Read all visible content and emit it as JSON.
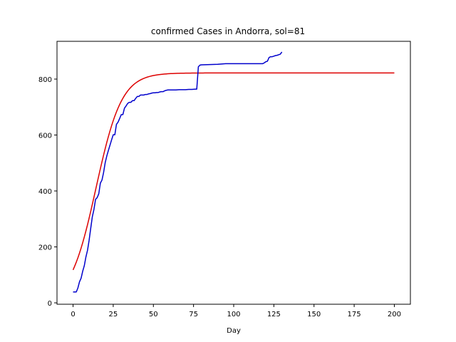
{
  "chart_data": {
    "type": "line",
    "title": "confirmed Cases in Andorra, sol=81",
    "xlabel": "Day",
    "ylabel": "",
    "xlim": [
      -10,
      210
    ],
    "ylim": [
      -5,
      935
    ],
    "xticks": [
      0,
      25,
      50,
      75,
      100,
      125,
      150,
      175,
      200
    ],
    "yticks": [
      0,
      200,
      400,
      600,
      800
    ],
    "grid": false,
    "legend": "none",
    "series": [
      {
        "kind": "fit",
        "color": "#dd0000",
        "model": "logistic",
        "params": {
          "K": 822,
          "r": 0.125,
          "t0": 14.3
        },
        "x_range": [
          0,
          200
        ]
      },
      {
        "kind": "observed",
        "color": "#0000cc",
        "points": [
          [
            0,
            39
          ],
          [
            1,
            39
          ],
          [
            2,
            39
          ],
          [
            3,
            53
          ],
          [
            4,
            75
          ],
          [
            5,
            88
          ],
          [
            6,
            113
          ],
          [
            7,
            133
          ],
          [
            8,
            164
          ],
          [
            9,
            188
          ],
          [
            10,
            224
          ],
          [
            11,
            267
          ],
          [
            12,
            308
          ],
          [
            13,
            334
          ],
          [
            14,
            370
          ],
          [
            15,
            376
          ],
          [
            16,
            390
          ],
          [
            17,
            428
          ],
          [
            18,
            439
          ],
          [
            19,
            466
          ],
          [
            20,
            501
          ],
          [
            21,
            525
          ],
          [
            22,
            545
          ],
          [
            23,
            564
          ],
          [
            24,
            583
          ],
          [
            25,
            601
          ],
          [
            26,
            601
          ],
          [
            27,
            638
          ],
          [
            28,
            646
          ],
          [
            29,
            659
          ],
          [
            30,
            673
          ],
          [
            31,
            673
          ],
          [
            32,
            696
          ],
          [
            33,
            704
          ],
          [
            34,
            713
          ],
          [
            35,
            717
          ],
          [
            36,
            717
          ],
          [
            37,
            723
          ],
          [
            38,
            723
          ],
          [
            39,
            731
          ],
          [
            40,
            738
          ],
          [
            41,
            738
          ],
          [
            42,
            743
          ],
          [
            43,
            743
          ],
          [
            44,
            743
          ],
          [
            45,
            745
          ],
          [
            46,
            745
          ],
          [
            47,
            747
          ],
          [
            48,
            748
          ],
          [
            49,
            750
          ],
          [
            50,
            751
          ],
          [
            51,
            751
          ],
          [
            52,
            752
          ],
          [
            53,
            752
          ],
          [
            54,
            754
          ],
          [
            55,
            755
          ],
          [
            56,
            755
          ],
          [
            57,
            758
          ],
          [
            58,
            760
          ],
          [
            59,
            761
          ],
          [
            60,
            761
          ],
          [
            62,
            761
          ],
          [
            64,
            761
          ],
          [
            66,
            762
          ],
          [
            68,
            762
          ],
          [
            70,
            762
          ],
          [
            72,
            763
          ],
          [
            74,
            763
          ],
          [
            76,
            764
          ],
          [
            77,
            764
          ],
          [
            78,
            844
          ],
          [
            79,
            850
          ],
          [
            80,
            851
          ],
          [
            85,
            852
          ],
          [
            90,
            853
          ],
          [
            95,
            855
          ],
          [
            100,
            855
          ],
          [
            105,
            855
          ],
          [
            110,
            855
          ],
          [
            115,
            855
          ],
          [
            118,
            855
          ],
          [
            119,
            858
          ],
          [
            120,
            862
          ],
          [
            121,
            864
          ],
          [
            122,
            877
          ],
          [
            123,
            880
          ],
          [
            124,
            880
          ],
          [
            125,
            882
          ],
          [
            126,
            884
          ],
          [
            127,
            885
          ],
          [
            128,
            887
          ],
          [
            129,
            889
          ],
          [
            130,
            897
          ]
        ]
      }
    ]
  }
}
